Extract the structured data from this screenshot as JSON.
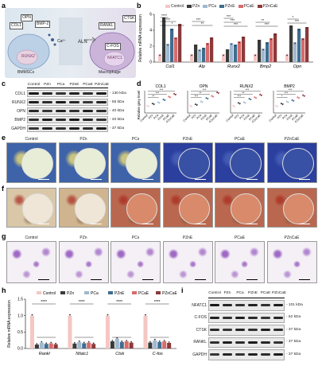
{
  "panels": {
    "a": "a",
    "b": "b",
    "c": "c",
    "d": "d",
    "e": "e",
    "f": "f",
    "g": "g",
    "h": "h",
    "i": "i"
  },
  "schematic": {
    "osteoblast_genes": [
      "COL1",
      "OPN",
      "BMP-2",
      "RUNX2"
    ],
    "osteoblast_cell": "BMMSCs",
    "ion": "Ca²⁺",
    "bone": "ALN",
    "osteoclast_genes": [
      "RANKL",
      "CTSK",
      "C-FOS",
      "NFATC1"
    ],
    "osteoclast_cell": "Macrophage"
  },
  "legend": [
    "Control",
    "PZn",
    "PCa",
    "PZnE",
    "PCaE",
    "PZnCaE"
  ],
  "colors": {
    "Control": "#f4c7c3",
    "PZn": "#3a3a3a",
    "PCa": "#9fb9cf",
    "PZnE": "#3f6d8f",
    "PCaE": "#d96b6b",
    "PZnCaE": "#8b3a3a"
  },
  "chart_b": {
    "ylabel": "Relative mRNA expression",
    "categories": [
      "Col1",
      "Alp",
      "Runx2",
      "Bmp2",
      "Opn"
    ],
    "ylim": [
      0,
      6
    ],
    "yticks": [
      0,
      2,
      4,
      6
    ],
    "series": [
      {
        "name": "Control",
        "values": [
          1.0,
          1.0,
          1.0,
          1.0,
          1.0
        ]
      },
      {
        "name": "PZn",
        "values": [
          5.6,
          2.2,
          1.6,
          2.8,
          4.6
        ]
      },
      {
        "name": "PCa",
        "values": [
          2.3,
          1.6,
          2.4,
          1.7,
          2.5
        ]
      },
      {
        "name": "PZnE",
        "values": [
          4.2,
          1.8,
          2.2,
          2.5,
          4.2
        ]
      },
      {
        "name": "PCaE",
        "values": [
          3.1,
          2.4,
          2.6,
          3.0,
          3.0
        ]
      },
      {
        "name": "PZnCaE",
        "values": [
          4.8,
          3.1,
          3.2,
          3.6,
          4.4
        ]
      }
    ],
    "sig": [
      "****",
      "***",
      "*",
      "***",
      "**",
      "***",
      "***",
      "***",
      "**",
      "***",
      "*",
      "***"
    ]
  },
  "blot_c": {
    "lanes": [
      "Control",
      "PZn",
      "PCa",
      "PZnE",
      "PCaE",
      "PZnCaE"
    ],
    "rows": [
      {
        "name": "COL1",
        "kda": "130 kDa"
      },
      {
        "name": "RUNX2",
        "kda": "55 kDa"
      },
      {
        "name": "OPN",
        "kda": "40 kDa"
      },
      {
        "name": "BMP2",
        "kda": "40 kDa"
      },
      {
        "name": "GAPDH",
        "kda": "37 kDa"
      }
    ]
  },
  "chart_d": {
    "ylabel": "Relative grey level",
    "subplots": [
      {
        "title": "COL1",
        "values": [
          1.0,
          1.3,
          1.5,
          1.9,
          2.3,
          2.7
        ],
        "sig": [
          "***",
          "***",
          "**"
        ]
      },
      {
        "title": "OPN",
        "values": [
          1.0,
          1.2,
          1.6,
          2.1,
          2.4,
          2.9
        ],
        "sig": [
          "***",
          "**",
          "***"
        ]
      },
      {
        "title": "RUNX2",
        "values": [
          1.0,
          1.4,
          1.5,
          2.0,
          2.2,
          2.6
        ],
        "sig": [
          "***",
          "**",
          "***"
        ]
      },
      {
        "title": "BMP2",
        "values": [
          1.0,
          1.3,
          1.6,
          1.8,
          2.2,
          2.5
        ],
        "sig": [
          "***",
          "***",
          "*"
        ]
      }
    ],
    "categories": [
      "Control",
      "PZn",
      "PCa",
      "PZnE",
      "PCaE",
      "PZnCaE"
    ]
  },
  "image_labels": [
    "Control",
    "PZn",
    "PCs",
    "PZnE",
    "PCaE",
    "PZnCaE"
  ],
  "chart_h": {
    "ylabel": "Relative mRNA expression",
    "categories": [
      "Rankl",
      "Nfatc1",
      "Ctsk",
      "C-fos"
    ],
    "ylim": [
      0,
      1.5
    ],
    "yticks": [
      "0.0",
      "0.5",
      "1.0",
      "1.5"
    ],
    "series": [
      {
        "name": "Control",
        "values": [
          1.0,
          1.0,
          1.0,
          1.0
        ]
      },
      {
        "name": "PZn",
        "values": [
          0.12,
          0.15,
          0.22,
          0.18
        ]
      },
      {
        "name": "PCa",
        "values": [
          0.18,
          0.2,
          0.3,
          0.25
        ]
      },
      {
        "name": "PZnE",
        "values": [
          0.14,
          0.16,
          0.2,
          0.2
        ]
      },
      {
        "name": "PCaE",
        "values": [
          0.16,
          0.18,
          0.22,
          0.22
        ]
      },
      {
        "name": "PZnCaE",
        "values": [
          0.13,
          0.14,
          0.18,
          0.17
        ]
      }
    ],
    "sig": "****"
  },
  "blot_i": {
    "lanes": [
      "Control",
      "PZn",
      "PCa",
      "PZnE",
      "PCaE",
      "PZnCaE"
    ],
    "rows": [
      {
        "name": "NFATC1",
        "kda": "101 kDa"
      },
      {
        "name": "C-FOS",
        "kda": "62 kDa"
      },
      {
        "name": "CTSK",
        "kda": "37 kDa"
      },
      {
        "name": "RANKL",
        "kda": "37 kDa"
      },
      {
        "name": "GAPDH",
        "kda": "37 kDa"
      }
    ]
  }
}
